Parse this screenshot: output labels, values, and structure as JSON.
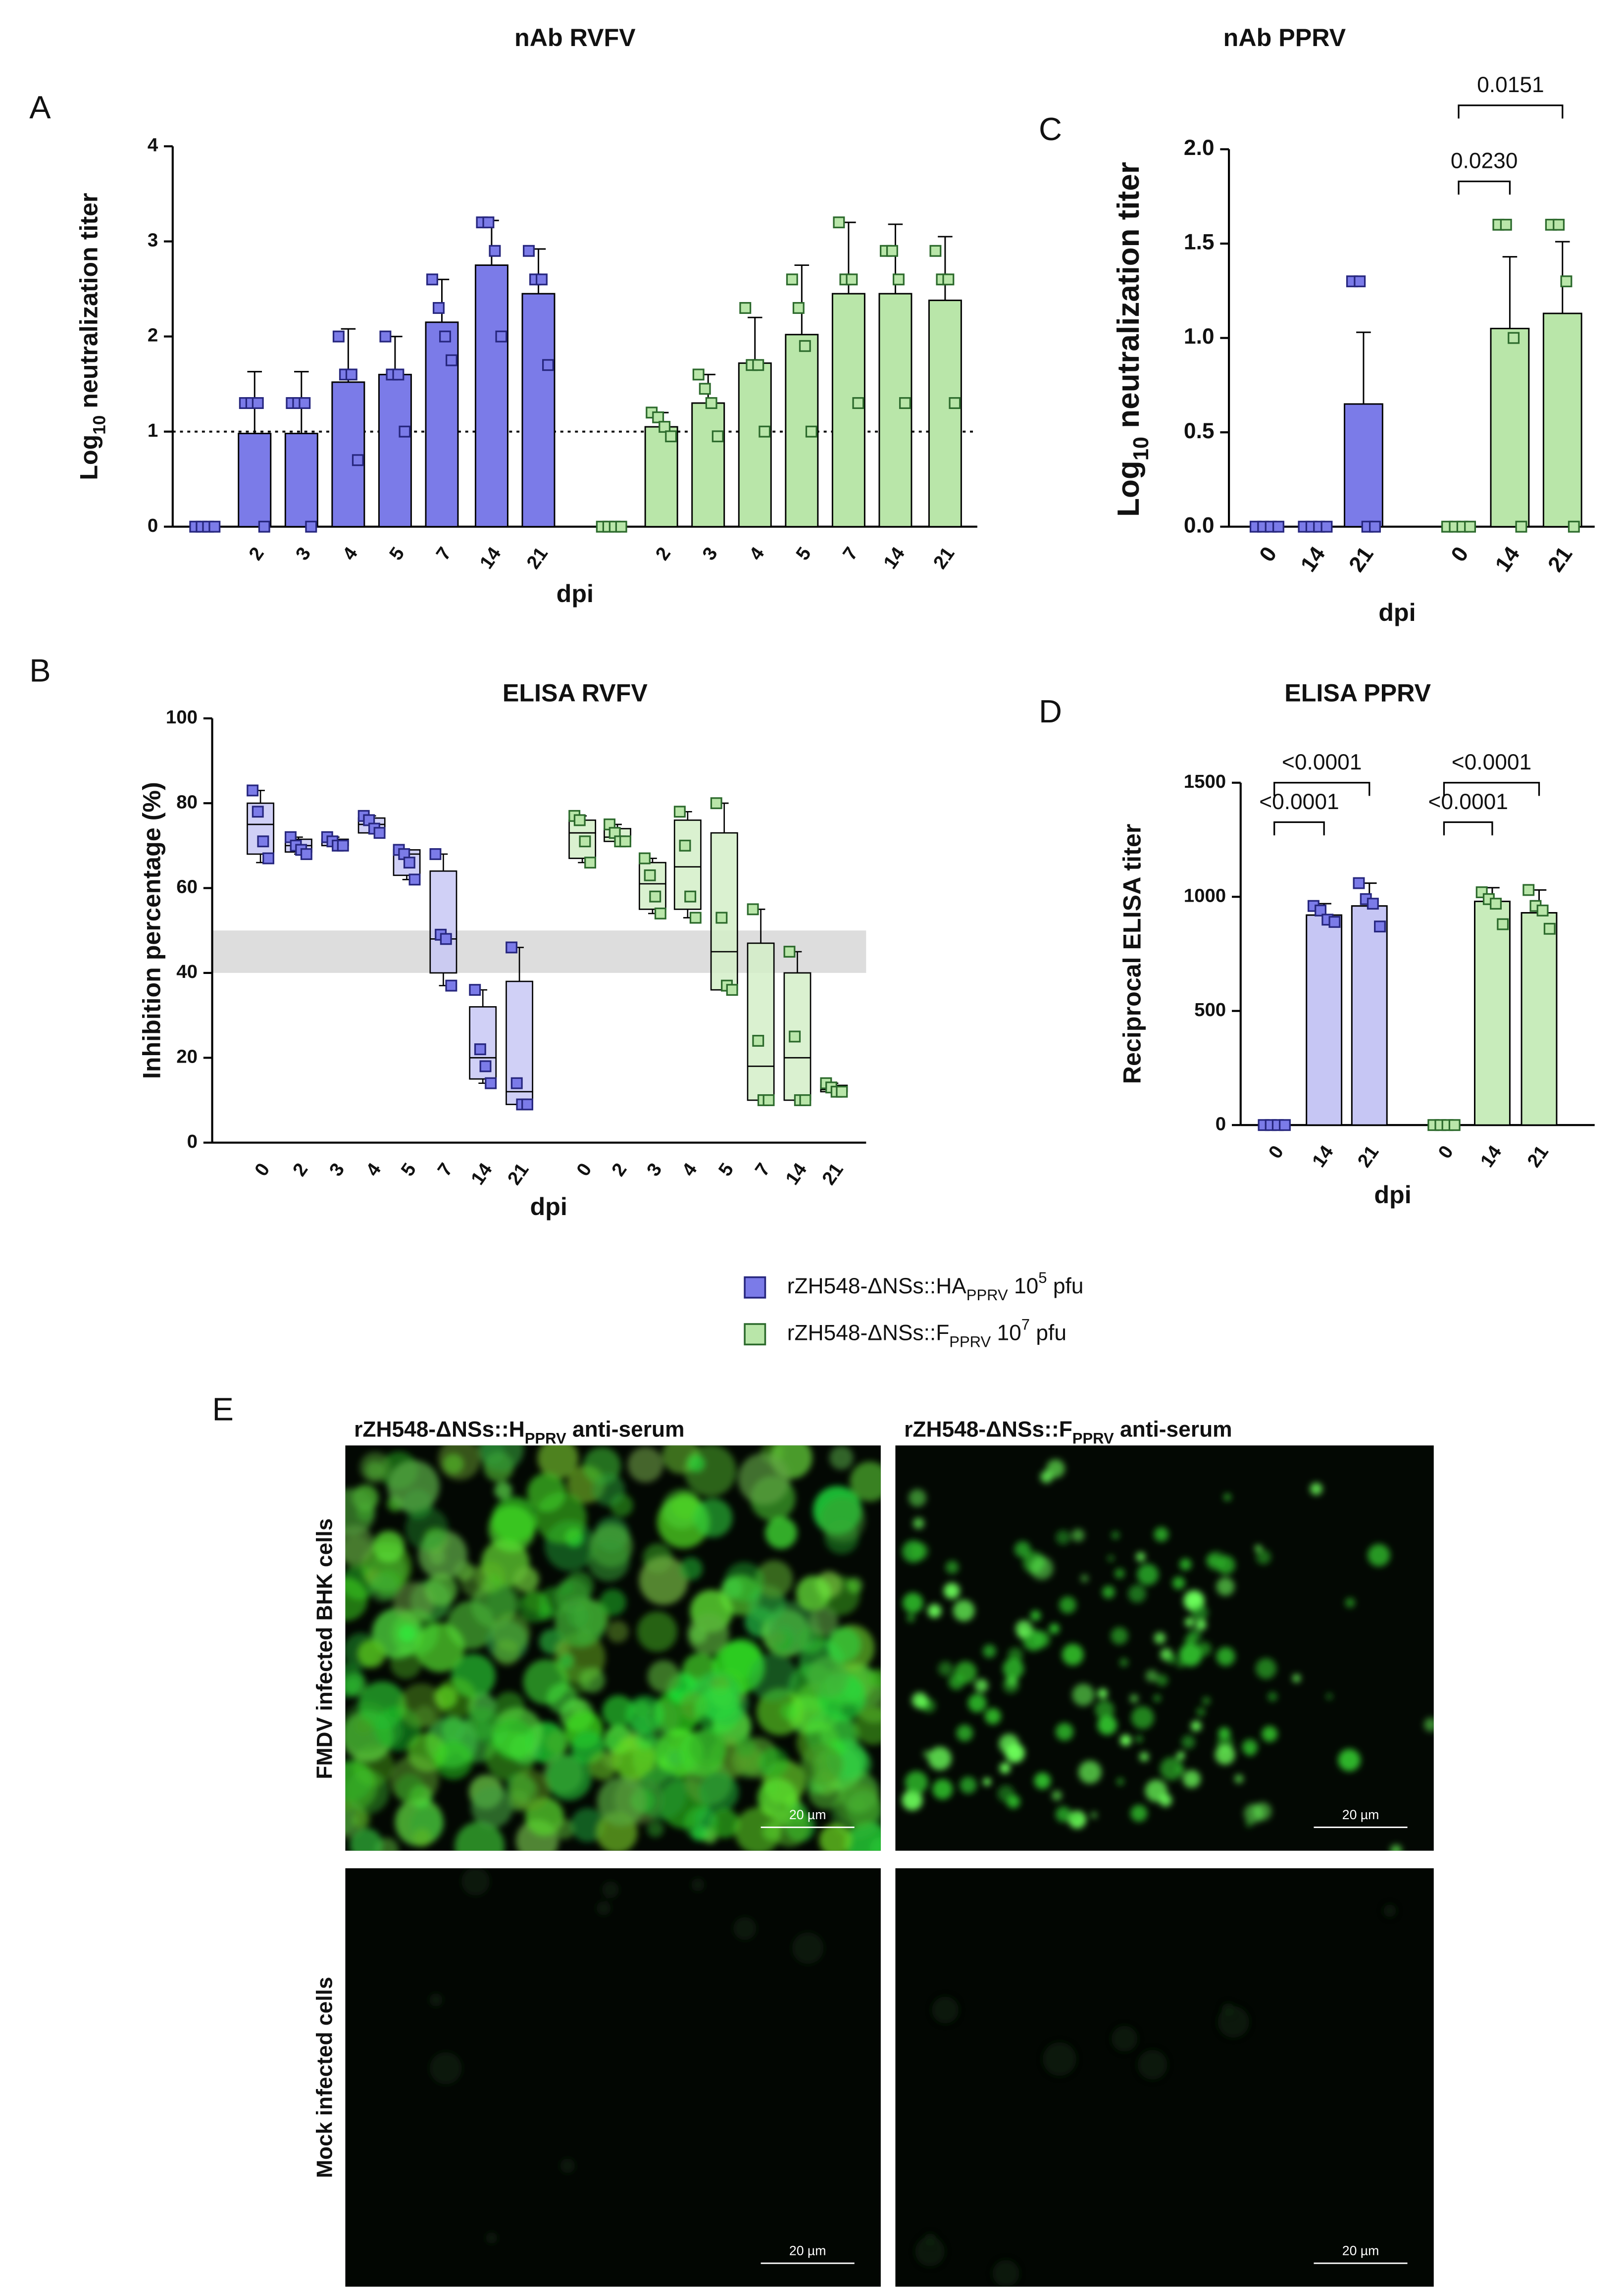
{
  "panel_labels": [
    "A",
    "B",
    "C",
    "D",
    "E"
  ],
  "chart_data": [
    {
      "type": "bar",
      "title": "nAb RVFV",
      "categories": [
        null,
        "2",
        "3",
        "4",
        "5",
        "7",
        "14",
        "21"
      ],
      "ylim": [
        0,
        4
      ],
      "yticks": [
        0,
        1,
        2,
        3,
        4
      ],
      "xlabel": "dpi",
      "ylabel": {
        "main": "Log",
        "sub": "10",
        "rest": " neutralization titer"
      },
      "reference_line": 1,
      "series": [
        {
          "name": {
            "prefix": "rZH548-ΔNSs::HA",
            "sub": "PPRV",
            "mid": " 10",
            "sup": "5",
            "suffix": " pfu"
          },
          "color": "#7b7be8",
          "edge": "#26267e",
          "values": [
            0,
            0.98,
            0.98,
            1.52,
            1.6,
            2.15,
            2.75,
            2.45
          ],
          "errors": [
            0,
            0.65,
            0.65,
            0.56,
            0.4,
            0.45,
            0.47,
            0.47
          ],
          "points": [
            [
              0,
              0,
              0,
              0
            ],
            [
              1.3,
              1.3,
              1.3,
              0
            ],
            [
              1.3,
              1.3,
              1.3,
              0
            ],
            [
              2.0,
              1.6,
              1.6,
              0.7
            ],
            [
              2.0,
              1.6,
              1.6,
              1.0
            ],
            [
              2.6,
              2.3,
              2.0,
              1.75
            ],
            [
              3.2,
              3.2,
              2.9,
              2.0
            ],
            [
              2.9,
              2.6,
              2.6,
              1.7
            ]
          ]
        },
        {
          "name": {
            "prefix": "rZH548-ΔNSs::F",
            "sub": "PPRV",
            "mid": " 10",
            "sup": "7",
            "suffix": " pfu"
          },
          "color": "#b9e6a9",
          "edge": "#2c6a2c",
          "values": [
            0,
            1.05,
            1.3,
            1.72,
            2.02,
            2.45,
            2.45,
            2.38
          ],
          "errors": [
            0,
            0.15,
            0.3,
            0.48,
            0.73,
            0.75,
            0.73,
            0.67
          ],
          "points": [
            [
              0,
              0,
              0,
              0
            ],
            [
              1.2,
              1.15,
              1.05,
              0.95
            ],
            [
              1.6,
              1.45,
              1.3,
              0.95
            ],
            [
              2.3,
              1.7,
              1.7,
              1.0
            ],
            [
              2.6,
              2.3,
              1.9,
              1.0
            ],
            [
              3.2,
              2.6,
              2.6,
              1.3
            ],
            [
              2.9,
              2.9,
              2.6,
              1.3
            ],
            [
              2.9,
              2.6,
              2.6,
              1.3
            ]
          ]
        }
      ]
    },
    {
      "type": "bar",
      "title": "nAb PPRV",
      "categories": [
        "0",
        "14",
        "21"
      ],
      "ylim": [
        0,
        2
      ],
      "yticks": [
        {
          "value": 0,
          "label": "0.0"
        },
        {
          "value": 0.5,
          "label": "0.5"
        },
        {
          "value": 1,
          "label": "1.0"
        },
        {
          "value": 1.5,
          "label": "1.5"
        },
        {
          "value": 2,
          "label": "2.0"
        }
      ],
      "xlabel": "dpi",
      "ylabel": {
        "main": "Log",
        "sub": "10",
        "rest": " neutralization titer"
      },
      "annotations": [
        "0.0230",
        "0.0151"
      ],
      "series": [
        {
          "color": "#7b7be8",
          "edge": "#26267e",
          "values": [
            0,
            0,
            0.65
          ],
          "errors": [
            0,
            0,
            0.38
          ],
          "points": [
            [
              0,
              0,
              0,
              0
            ],
            [
              0,
              0,
              0,
              0
            ],
            [
              1.3,
              1.3,
              0,
              0
            ]
          ]
        },
        {
          "color": "#b9e6a9",
          "edge": "#2c6a2c",
          "values": [
            0,
            1.05,
            1.13
          ],
          "errors": [
            0,
            0.38,
            0.38
          ],
          "points": [
            [
              0,
              0,
              0,
              0
            ],
            [
              1.6,
              1.6,
              1.0,
              0
            ],
            [
              1.6,
              1.6,
              1.3,
              0
            ]
          ]
        }
      ]
    },
    {
      "type": "box",
      "title": "ELISA RVFV",
      "categories": [
        "0",
        "2",
        "3",
        "4",
        "5",
        "7",
        "14",
        "21"
      ],
      "ylim": [
        0,
        100
      ],
      "yticks": [
        0,
        20,
        40,
        60,
        80,
        100
      ],
      "xlabel": "dpi",
      "ylabel": "Inhibition percentage (%)",
      "shaded_band": [
        40,
        50
      ],
      "series": [
        {
          "color": "#c8c8f4",
          "edge": "#26267e",
          "point_color": "#7b7be8",
          "min": [
            66,
            68,
            70,
            73,
            62,
            37,
            14,
            9
          ],
          "q1": [
            68,
            68.5,
            70,
            73,
            63,
            40,
            15,
            9
          ],
          "median": [
            75,
            70,
            71,
            75,
            68,
            48,
            20,
            12
          ],
          "q3": [
            80,
            71.5,
            71.5,
            76.5,
            69,
            64,
            32,
            38
          ],
          "max": [
            83,
            72,
            72,
            77,
            69,
            68,
            36,
            46
          ],
          "points": [
            [
              83,
              78,
              71,
              67
            ],
            [
              72,
              70,
              69,
              68
            ],
            [
              72,
              71,
              70,
              70
            ],
            [
              77,
              76,
              74,
              73
            ],
            [
              69,
              68,
              66,
              62
            ],
            [
              68,
              49,
              48,
              37
            ],
            [
              36,
              22,
              18,
              14
            ],
            [
              46,
              14,
              9,
              9
            ]
          ]
        },
        {
          "color": "#d3efc8",
          "edge": "#2c6a2c",
          "point_color": "#b9e6a9",
          "min": [
            66,
            71,
            54,
            53,
            36,
            10,
            10,
            12
          ],
          "q1": [
            67,
            71,
            55,
            55,
            36,
            10,
            10,
            12
          ],
          "median": [
            73,
            72,
            61,
            65,
            45,
            18,
            20,
            12.5
          ],
          "q3": [
            76,
            74,
            66,
            76,
            73,
            47,
            40,
            13.5
          ],
          "max": [
            77,
            75,
            67,
            78,
            80,
            55,
            45,
            14
          ],
          "points": [
            [
              77,
              76,
              71,
              66
            ],
            [
              75,
              73,
              71,
              71
            ],
            [
              67,
              63,
              58,
              54
            ],
            [
              78,
              70,
              58,
              53
            ],
            [
              80,
              53,
              37,
              36
            ],
            [
              55,
              24,
              10,
              10
            ],
            [
              45,
              25,
              10,
              10
            ],
            [
              14,
              13,
              12,
              12
            ]
          ]
        }
      ]
    },
    {
      "type": "bar",
      "title": "ELISA PPRV",
      "categories": [
        "0",
        "14",
        "21"
      ],
      "ylim": [
        0,
        1500
      ],
      "yticks": [
        0,
        500,
        1000,
        1500
      ],
      "xlabel": "dpi",
      "ylabel": "Reciprocal ELISA titer",
      "annotations": [
        "<0.0001",
        "<0.0001",
        "<0.0001",
        "<0.0001"
      ],
      "series": [
        {
          "color": "#c6c6f4",
          "edge": "#26267e",
          "point_color": "#7b7be8",
          "values": [
            0,
            920,
            960
          ],
          "errors": [
            0,
            50,
            100
          ],
          "points": [
            [
              0,
              0,
              0,
              0
            ],
            [
              960,
              940,
              900,
              890
            ],
            [
              1060,
              990,
              970,
              870
            ]
          ]
        },
        {
          "color": "#c8ecbb",
          "edge": "#2c6a2c",
          "point_color": "#b9e6a9",
          "values": [
            0,
            980,
            930
          ],
          "errors": [
            0,
            60,
            100
          ],
          "points": [
            [
              0,
              0,
              0,
              0
            ],
            [
              1020,
              990,
              970,
              880
            ],
            [
              1030,
              960,
              940,
              860
            ]
          ]
        }
      ]
    }
  ],
  "panel_e": {
    "columns": [
      {
        "prefix": "rZH548-ΔNSs::H",
        "sub": "PPRV",
        "suffix": " anti-serum"
      },
      {
        "prefix": "rZH548-ΔNSs::F",
        "sub": "PPRV",
        "suffix": " anti-serum"
      }
    ],
    "rows": [
      "FMDV infected BHK cells",
      "Mock infected cells"
    ],
    "scale_bar": "20 µm"
  }
}
